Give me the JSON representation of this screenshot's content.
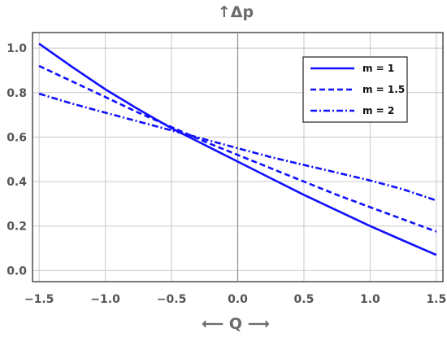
{
  "chart_data": {
    "type": "line",
    "title": "",
    "xlabel": "⟵ Q ⟶",
    "ylabel": "↑Δp",
    "xlim": [
      -1.55,
      1.55
    ],
    "ylim": [
      -0.05,
      1.07
    ],
    "x_ticks": [
      "-1.5",
      "-1.0",
      "-0.5",
      "0.0",
      "0.5",
      "1.0",
      "1.5"
    ],
    "y_ticks": [
      "0.0",
      "0.2",
      "0.4",
      "0.6",
      "0.8",
      "1.0"
    ],
    "grid": true,
    "legend_position": "top-right",
    "series": [
      {
        "name": "m =  1",
        "style": "solid",
        "color": "#1010ff",
        "x": [
          -1.5,
          -1.25,
          -1.0,
          -0.75,
          -0.5,
          -0.25,
          0.0,
          0.25,
          0.5,
          0.75,
          1.0,
          1.25,
          1.5
        ],
        "y": [
          1.02,
          0.915,
          0.815,
          0.725,
          0.64,
          0.565,
          0.49,
          0.415,
          0.34,
          0.27,
          0.2,
          0.135,
          0.07
        ]
      },
      {
        "name": "m = 1.5",
        "style": "dashed",
        "color": "#1010ff",
        "x": [
          -1.5,
          -1.25,
          -1.0,
          -0.75,
          -0.5,
          -0.25,
          0.0,
          0.25,
          0.5,
          0.75,
          1.0,
          1.25,
          1.5
        ],
        "y": [
          0.92,
          0.85,
          0.78,
          0.71,
          0.645,
          0.58,
          0.52,
          0.46,
          0.4,
          0.34,
          0.285,
          0.23,
          0.175
        ]
      },
      {
        "name": "m = 2",
        "style": "dashdot",
        "color": "#1010ff",
        "x": [
          -1.5,
          -1.25,
          -1.0,
          -0.75,
          -0.5,
          -0.25,
          0.0,
          0.25,
          0.5,
          0.75,
          1.0,
          1.25,
          1.5
        ],
        "y": [
          0.795,
          0.75,
          0.71,
          0.67,
          0.63,
          0.59,
          0.55,
          0.51,
          0.475,
          0.44,
          0.405,
          0.365,
          0.315
        ]
      }
    ]
  }
}
